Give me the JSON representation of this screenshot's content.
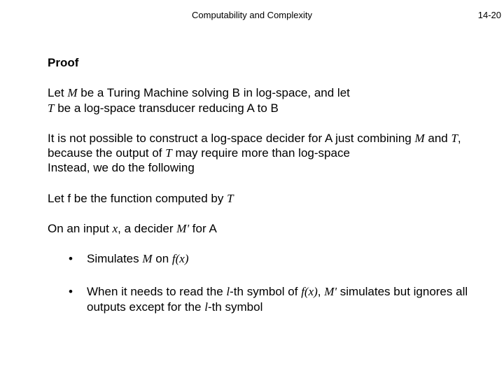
{
  "header": {
    "title": "Computability and Complexity",
    "page_number": "14-20"
  },
  "proof": {
    "heading": "Proof",
    "p1_a": "Let  ",
    "p1_M": "M",
    "p1_b": "  be a Turing Machine solving  ",
    "p1_B1": "B",
    "p1_c": "  in log-space, and let ",
    "p1_T": "T",
    "p1_d": "  be a log-space transducer reducing  ",
    "p1_A": "A",
    "p1_e": "  to  ",
    "p1_B2": "B",
    "p2_a": "It is not possible to construct a log-space decider for  ",
    "p2_A": "A",
    "p2_b": "  just combining  ",
    "p2_M": "M",
    "p2_c": "  and  ",
    "p2_T1": "T",
    "p2_d": ",  because the output of  ",
    "p2_T2": "T",
    "p2_e": "  may require more than log-space",
    "p2_f": "Instead, we do the following",
    "p3_a": "Let  f  be the function computed by  ",
    "p3_T": "T",
    "p4_a": "On an input  ",
    "p4_x": "x",
    "p4_b": ",  a decider  ",
    "p4_Mp": "M'",
    "p4_c": "  for  ",
    "p4_A": "A",
    "b1_a": "Simulates  ",
    "b1_M": "M",
    "b1_b": "  on  ",
    "b1_fx": "f(x)",
    "b2_a": "When it needs to read the ",
    "b2_l1": "l",
    "b2_b": "-th symbol of  ",
    "b2_fx": "f(x)",
    "b2_c": ",  ",
    "b2_Mp": "M'",
    "b2_d": "  simulates but ignores all outputs except for the ",
    "b2_l2": "l",
    "b2_e": "-th symbol"
  }
}
